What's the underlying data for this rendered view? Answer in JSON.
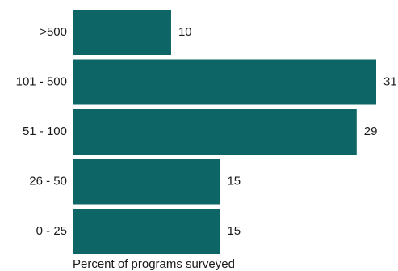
{
  "chart_data": {
    "type": "bar",
    "orientation": "horizontal",
    "categories": [
      ">500",
      "101 - 500",
      "51 - 100",
      "26 - 50",
      "0 - 25"
    ],
    "values": [
      10,
      31,
      29,
      15,
      15
    ],
    "xlabel": "Percent of programs surveyed",
    "ylabel": "",
    "xlim": [
      0,
      31
    ],
    "grid": false,
    "bar_color": "#0d6665"
  }
}
